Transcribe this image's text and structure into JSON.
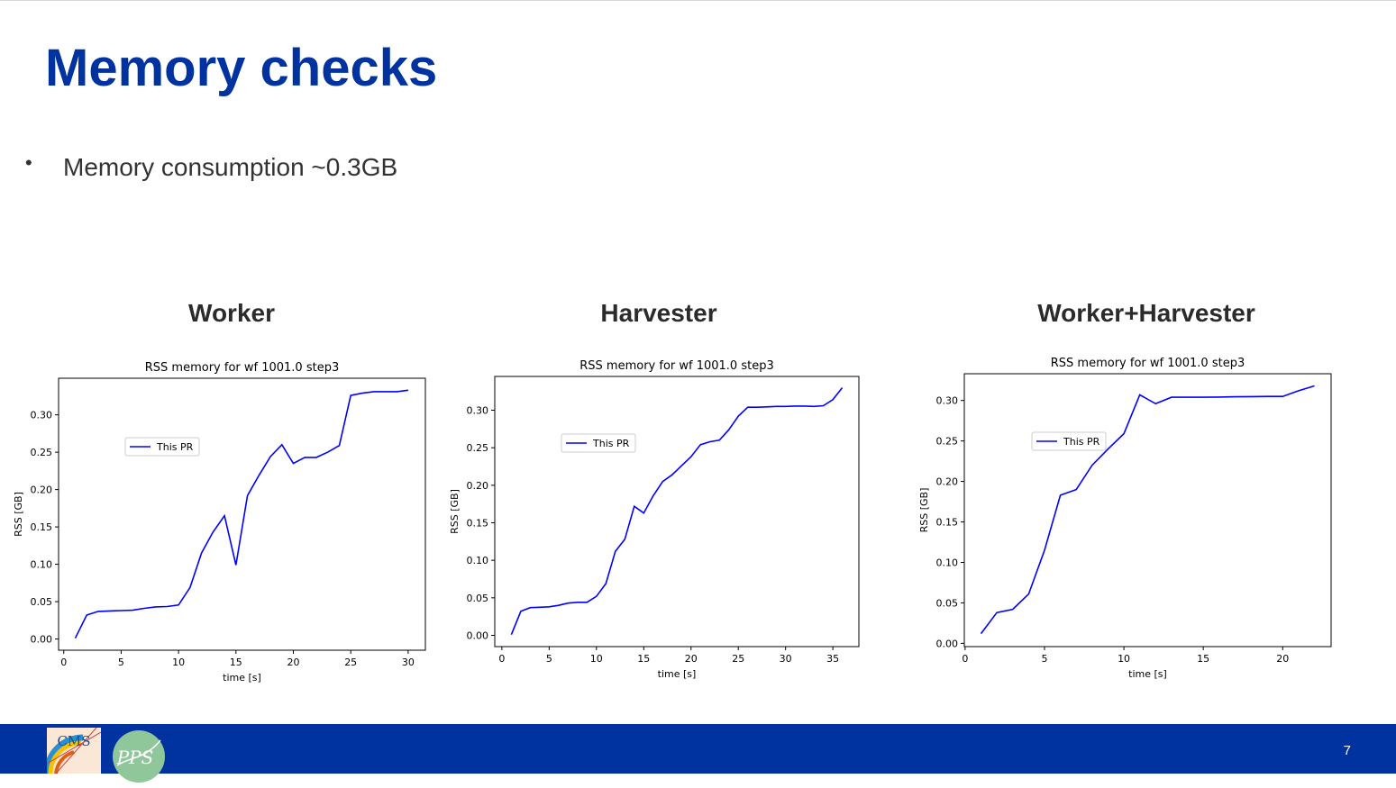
{
  "slide": {
    "title": "Memory checks",
    "bullet": "Memory consumption ~0.3GB",
    "page_number": "7",
    "logos": {
      "cms_text": "CMS",
      "pps_text": "PPS"
    },
    "colors": {
      "title": "#0033a0",
      "footer": "#0033a0",
      "series": "#0000ff"
    }
  },
  "panels": [
    {
      "heading": "Worker"
    },
    {
      "heading": "Harvester"
    },
    {
      "heading": "Worker+Harvester"
    }
  ],
  "chart_data": [
    {
      "type": "line",
      "title": "RSS memory for wf 1001.0 step3",
      "xlabel": "time [s]",
      "ylabel": "RSS [GB]",
      "xlim": [
        -0.45,
        31.5
      ],
      "ylim": [
        -0.015,
        0.349
      ],
      "xticks": [
        0,
        5,
        10,
        15,
        20,
        25,
        30
      ],
      "yticks": [
        0.0,
        0.05,
        0.1,
        0.15,
        0.2,
        0.25,
        0.3
      ],
      "ytick_labels": [
        "0.00",
        "0.05",
        "0.10",
        "0.15",
        "0.20",
        "0.25",
        "0.30"
      ],
      "legend": "upper-left",
      "series": [
        {
          "name": "This PR",
          "color": "#0000ff",
          "x": [
            1,
            2,
            3,
            4,
            5,
            6,
            7,
            8,
            9,
            10,
            11,
            12,
            13,
            14,
            15,
            16,
            17,
            18,
            19,
            20,
            21,
            22,
            23,
            24,
            25,
            26,
            27,
            28,
            29,
            30
          ],
          "y": [
            0.001,
            0.032,
            0.037,
            0.0375,
            0.038,
            0.0385,
            0.041,
            0.043,
            0.0435,
            0.0455,
            0.069,
            0.115,
            0.143,
            0.165,
            0.099,
            0.192,
            0.219,
            0.244,
            0.26,
            0.235,
            0.243,
            0.243,
            0.25,
            0.259,
            0.326,
            0.329,
            0.331,
            0.331,
            0.331,
            0.333
          ]
        }
      ]
    },
    {
      "type": "line",
      "title": "RSS memory for wf 1001.0 step3",
      "xlabel": "time [s]",
      "ylabel": "RSS [GB]",
      "xlim": [
        -0.75,
        37.75
      ],
      "ylim": [
        -0.015,
        0.345
      ],
      "xticks": [
        0,
        5,
        10,
        15,
        20,
        25,
        30,
        35
      ],
      "yticks": [
        0.0,
        0.05,
        0.1,
        0.15,
        0.2,
        0.25,
        0.3
      ],
      "ytick_labels": [
        "0.00",
        "0.05",
        "0.10",
        "0.15",
        "0.20",
        "0.25",
        "0.30"
      ],
      "legend": "upper-left",
      "series": [
        {
          "name": "This PR",
          "color": "#0000ff",
          "x": [
            1,
            2,
            3,
            4,
            5,
            6,
            7,
            8,
            9,
            10,
            11,
            12,
            13,
            14,
            15,
            16,
            17,
            18,
            19,
            20,
            21,
            22,
            23,
            24,
            25,
            26,
            27,
            28,
            29,
            30,
            31,
            32,
            33,
            34,
            35,
            36
          ],
          "y": [
            0.001,
            0.032,
            0.037,
            0.0375,
            0.038,
            0.04,
            0.043,
            0.044,
            0.044,
            0.052,
            0.069,
            0.112,
            0.128,
            0.172,
            0.163,
            0.186,
            0.205,
            0.214,
            0.226,
            0.238,
            0.254,
            0.258,
            0.26,
            0.274,
            0.292,
            0.304,
            0.304,
            0.3045,
            0.305,
            0.305,
            0.3055,
            0.3055,
            0.305,
            0.306,
            0.314,
            0.33
          ]
        }
      ]
    },
    {
      "type": "line",
      "title": "RSS memory for wf 1001.0 step3",
      "xlabel": "time [s]",
      "ylabel": "RSS [GB]",
      "xlim": [
        -0.05,
        23.05
      ],
      "ylim": [
        -0.004,
        0.333
      ],
      "xticks": [
        0,
        5,
        10,
        15,
        20
      ],
      "yticks": [
        0.0,
        0.05,
        0.1,
        0.15,
        0.2,
        0.25,
        0.3
      ],
      "ytick_labels": [
        "0.00",
        "0.05",
        "0.10",
        "0.15",
        "0.20",
        "0.25",
        "0.30"
      ],
      "legend": "upper-left",
      "series": [
        {
          "name": "This PR",
          "color": "#0000ff",
          "x": [
            1,
            2,
            3,
            4,
            5,
            6,
            7,
            8,
            9,
            10,
            11,
            12,
            13,
            14,
            15,
            16,
            17,
            18,
            19,
            20,
            21,
            22
          ],
          "y": [
            0.012,
            0.038,
            0.042,
            0.061,
            0.115,
            0.183,
            0.19,
            0.22,
            0.24,
            0.259,
            0.307,
            0.296,
            0.304,
            0.304,
            0.304,
            0.3042,
            0.3045,
            0.3048,
            0.305,
            0.305,
            0.312,
            0.318
          ]
        }
      ]
    }
  ]
}
